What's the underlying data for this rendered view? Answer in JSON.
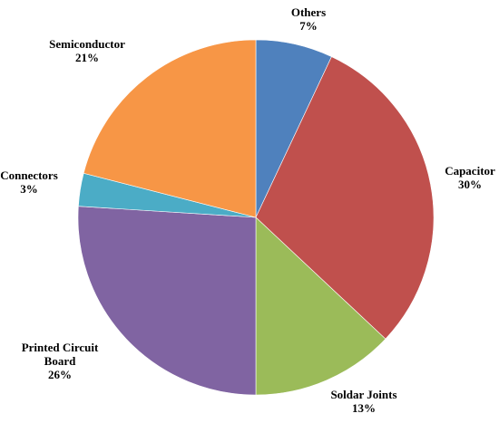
{
  "chart_data": {
    "type": "pie",
    "title": "",
    "start_angle_deg": 0,
    "direction": "clockwise",
    "legend": "none",
    "slices": [
      {
        "label": [
          "Others"
        ],
        "percent_label": "7%",
        "value": 7,
        "color": "#4f81bd"
      },
      {
        "label": [
          "Capacitor"
        ],
        "percent_label": "30%",
        "value": 30,
        "color": "#c0504d"
      },
      {
        "label": [
          "Soldar Joints"
        ],
        "percent_label": "13%",
        "value": 13,
        "color": "#9bbb59"
      },
      {
        "label": [
          "Printed Circuit",
          "Board"
        ],
        "percent_label": "26%",
        "value": 26,
        "color": "#8064a2"
      },
      {
        "label": [
          "Connectors"
        ],
        "percent_label": "3%",
        "value": 3,
        "color": "#4bacc6"
      },
      {
        "label": [
          "Semiconductor"
        ],
        "percent_label": "21%",
        "value": 21,
        "color": "#f79646"
      }
    ]
  }
}
